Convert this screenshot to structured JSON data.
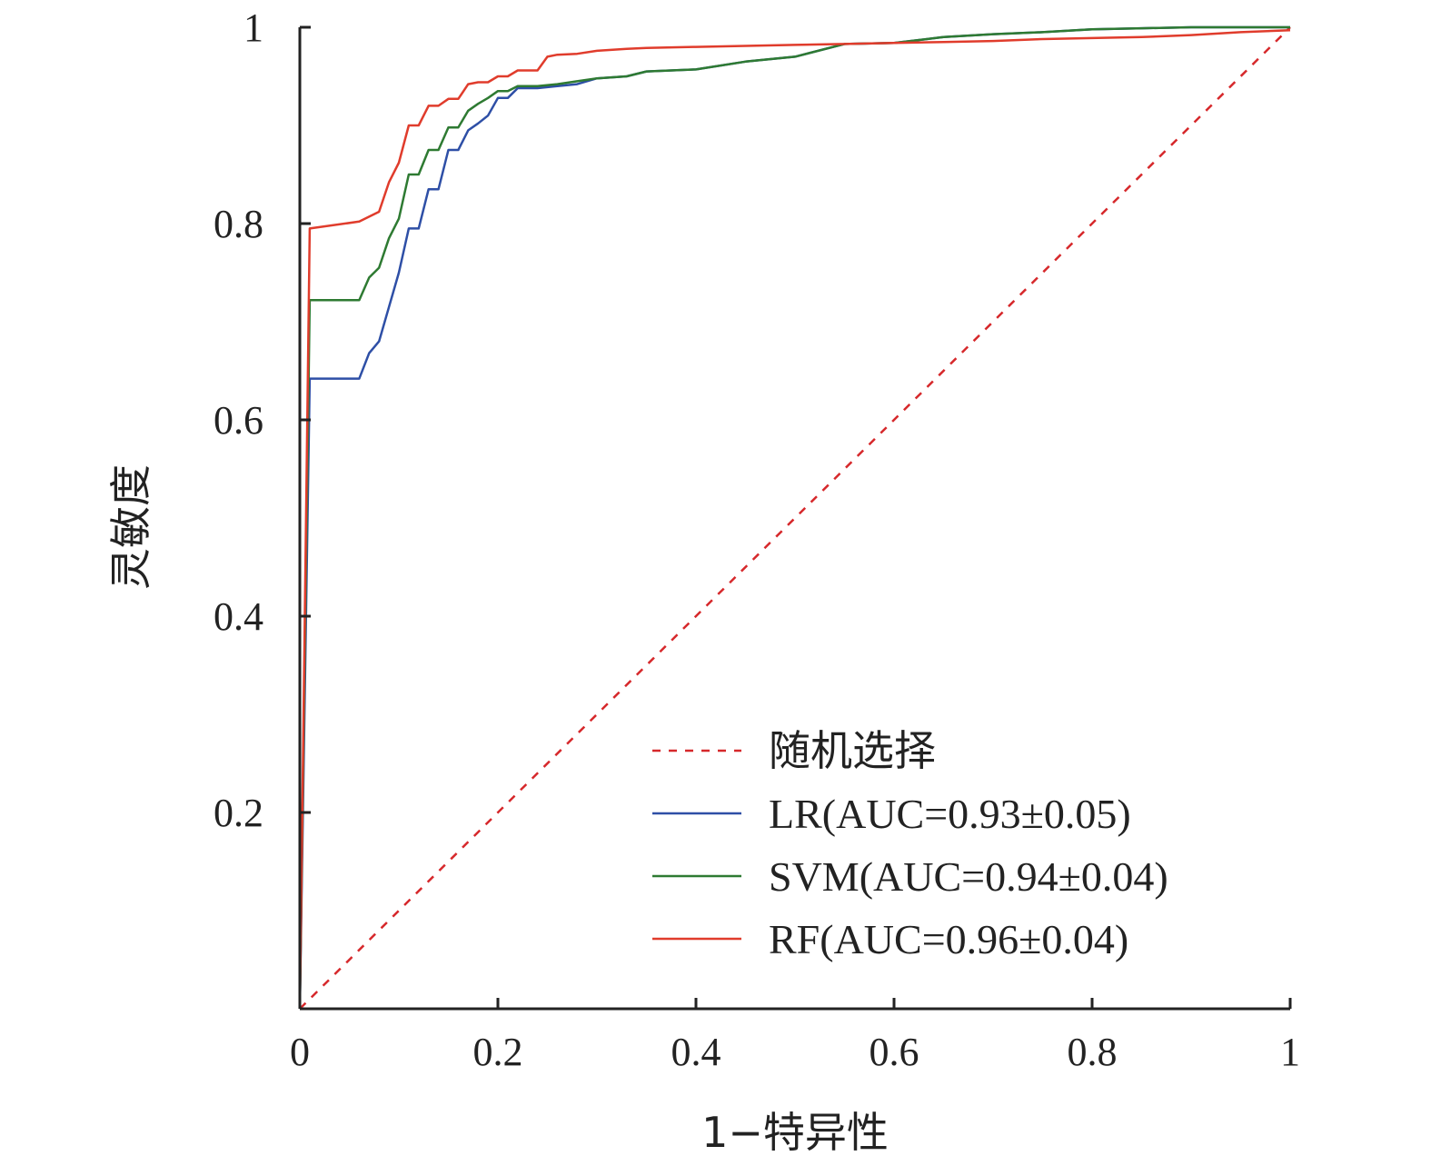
{
  "chart_data": {
    "type": "line",
    "title": "",
    "xlabel": "1−特异性",
    "ylabel": "灵敏度",
    "xlim": [
      0,
      1
    ],
    "ylim": [
      0,
      1
    ],
    "x_ticks": [
      "0",
      "0.2",
      "0.4",
      "0.6",
      "0.8",
      "1"
    ],
    "y_ticks": [
      "0.2",
      "0.4",
      "0.6",
      "0.8",
      "1"
    ],
    "grid": false,
    "legend_position": "bottom-right",
    "series": [
      {
        "name": "随机选择",
        "color": "#d6282b",
        "style": "dashed",
        "x": [
          0,
          1
        ],
        "y": [
          0,
          1
        ]
      },
      {
        "name": "LR(AUC=0.93±0.05)",
        "color": "#2e4fa6",
        "style": "solid",
        "x": [
          0,
          0.01,
          0.06,
          0.07,
          0.08,
          0.09,
          0.1,
          0.11,
          0.12,
          0.13,
          0.14,
          0.15,
          0.16,
          0.17,
          0.18,
          0.19,
          0.2,
          0.21,
          0.22,
          0.24,
          0.26,
          0.28,
          0.3,
          0.33,
          0.35,
          0.4,
          0.45,
          0.5,
          0.55,
          0.6,
          0.65,
          0.7,
          0.75,
          0.8,
          0.85,
          0.9,
          0.95,
          1.0
        ],
        "y": [
          0,
          0.642,
          0.642,
          0.668,
          0.68,
          0.715,
          0.75,
          0.795,
          0.795,
          0.835,
          0.835,
          0.875,
          0.875,
          0.895,
          0.902,
          0.91,
          0.928,
          0.928,
          0.938,
          0.938,
          0.94,
          0.942,
          0.948,
          0.95,
          0.955,
          0.957,
          0.965,
          0.97,
          0.983,
          0.984,
          0.99,
          0.993,
          0.995,
          0.998,
          0.999,
          1.0,
          1.0,
          1.0
        ]
      },
      {
        "name": "SVM(AUC=0.94±0.04)",
        "color": "#2e7a32",
        "style": "solid",
        "x": [
          0,
          0.01,
          0.06,
          0.07,
          0.08,
          0.09,
          0.1,
          0.11,
          0.12,
          0.13,
          0.14,
          0.15,
          0.16,
          0.17,
          0.18,
          0.19,
          0.2,
          0.21,
          0.22,
          0.24,
          0.26,
          0.28,
          0.3,
          0.33,
          0.35,
          0.4,
          0.45,
          0.5,
          0.55,
          0.6,
          0.65,
          0.7,
          0.75,
          0.8,
          0.85,
          0.9,
          0.95,
          1.0
        ],
        "y": [
          0,
          0.722,
          0.722,
          0.745,
          0.755,
          0.785,
          0.805,
          0.85,
          0.85,
          0.875,
          0.875,
          0.898,
          0.898,
          0.915,
          0.922,
          0.928,
          0.935,
          0.935,
          0.94,
          0.94,
          0.942,
          0.945,
          0.948,
          0.95,
          0.955,
          0.957,
          0.965,
          0.97,
          0.983,
          0.984,
          0.99,
          0.993,
          0.995,
          0.998,
          0.999,
          1.0,
          1.0,
          1.0
        ]
      },
      {
        "name": "RF(AUC=0.96±0.04)",
        "color": "#e03c2c",
        "style": "solid",
        "x": [
          0,
          0.01,
          0.06,
          0.08,
          0.09,
          0.1,
          0.11,
          0.12,
          0.13,
          0.14,
          0.15,
          0.16,
          0.17,
          0.18,
          0.19,
          0.2,
          0.21,
          0.22,
          0.24,
          0.25,
          0.26,
          0.28,
          0.3,
          0.33,
          0.35,
          0.4,
          0.45,
          0.5,
          0.55,
          0.6,
          0.65,
          0.7,
          0.75,
          0.8,
          0.85,
          0.9,
          0.95,
          1.0
        ],
        "y": [
          0,
          0.795,
          0.802,
          0.812,
          0.842,
          0.862,
          0.9,
          0.9,
          0.92,
          0.92,
          0.927,
          0.927,
          0.942,
          0.944,
          0.944,
          0.95,
          0.95,
          0.956,
          0.956,
          0.97,
          0.972,
          0.973,
          0.976,
          0.978,
          0.979,
          0.98,
          0.981,
          0.982,
          0.983,
          0.984,
          0.985,
          0.986,
          0.988,
          0.989,
          0.99,
          0.992,
          0.995,
          0.997
        ]
      }
    ]
  }
}
